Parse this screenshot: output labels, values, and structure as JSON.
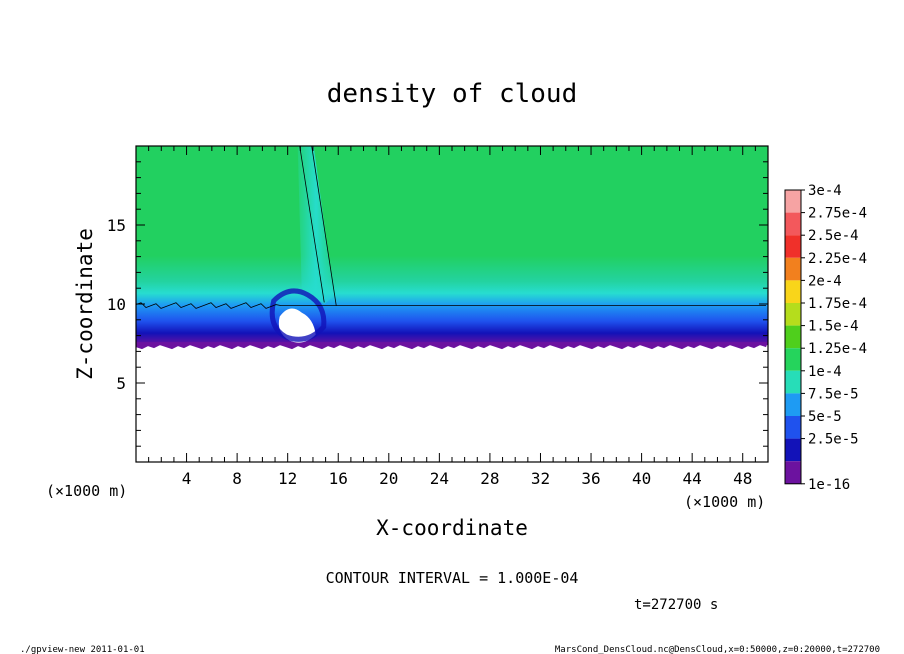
{
  "chart_data": {
    "type": "heatmap",
    "title": "density of cloud",
    "xlabel": "X-coordinate",
    "ylabel": "Z-coordinate",
    "x_unit_left": "(×1000 m)",
    "x_unit_right": "(×1000 m)",
    "xlim": [
      0,
      50
    ],
    "ylim": [
      0,
      20
    ],
    "x_ticks": [
      4,
      8,
      12,
      16,
      20,
      24,
      28,
      32,
      36,
      40,
      44,
      48
    ],
    "y_ticks": [
      5,
      10,
      15
    ],
    "colorbar": {
      "labels": [
        "3e-4",
        "2.75e-4",
        "2.5e-4",
        "2.25e-4",
        "2e-4",
        "1.75e-4",
        "1.5e-4",
        "1.25e-4",
        "1e-4",
        "7.5e-5",
        "5e-5",
        "2.5e-5",
        "1e-16"
      ],
      "colors": [
        "#f6a3a3",
        "#f3585c",
        "#f0302a",
        "#f2801e",
        "#f9d51a",
        "#b5dd1c",
        "#4fcf1c",
        "#25d45c",
        "#27ddb8",
        "#1e9bf3",
        "#1f52ee",
        "#1212b8",
        "#6c129f"
      ]
    },
    "field": {
      "cloud_base_km": 7.4,
      "cloud_top_km": 20,
      "uniform_value": 0.00013,
      "contour_level": 0.0001,
      "contour_z_km": 9.9,
      "plume_x_km": [
        12,
        16
      ]
    },
    "annotations": {
      "contour_interval": "CONTOUR INTERVAL = 1.000E-04",
      "time": "t=272700  s"
    }
  },
  "footer": {
    "left": "./gpview-new   2011-01-01",
    "right": "MarsCond_DensCloud.nc@DensCloud,x=0:50000,z=0:20000,t=272700"
  }
}
